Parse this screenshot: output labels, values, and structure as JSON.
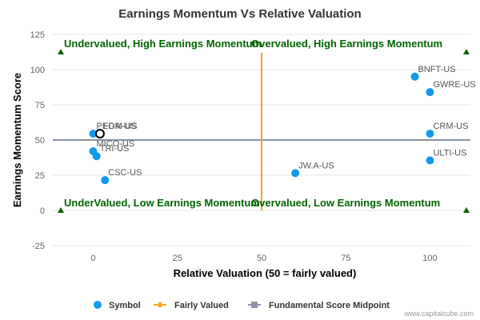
{
  "chart_data": {
    "type": "scatter",
    "title": "Earnings Momentum Vs Relative Valuation",
    "xlabel": "Relative Valuation (50 = fairly valued)",
    "ylabel": "Earnings Momentum Score",
    "xlim": [
      -12,
      112
    ],
    "ylim": [
      -25,
      125
    ],
    "x_ticks": [
      0,
      25,
      50,
      75,
      100
    ],
    "y_ticks": [
      -25,
      0,
      25,
      50,
      75,
      100,
      125
    ],
    "grid": "horizontal",
    "series": [
      {
        "name": "Symbol",
        "color": "#1199ee",
        "points": [
          {
            "label": "BNFT-US",
            "x": 95.5,
            "y": 95
          },
          {
            "label": "GWRE-US",
            "x": 100,
            "y": 84
          },
          {
            "label": "CRM-US",
            "x": 100,
            "y": 54.5
          },
          {
            "label": "ULTI-US",
            "x": 100,
            "y": 35.5
          },
          {
            "label": "JW.A-US",
            "x": 60,
            "y": 26.5
          },
          {
            "label": "PEGA-US",
            "x": 0,
            "y": 54.5
          },
          {
            "label": "MICO-US",
            "x": 0,
            "y": 42
          },
          {
            "label": "TRI-US",
            "x": 1,
            "y": 38.5
          },
          {
            "label": "CSC-US",
            "x": 3.5,
            "y": 21.5
          }
        ]
      }
    ],
    "highlight_point": {
      "label": "FDM-US",
      "x": 2,
      "y": 54.5
    },
    "fairly_valued": {
      "name": "Fairly Valued",
      "x": 50,
      "color": "#f5a623"
    },
    "midpoint": {
      "name": "Fundamental Score Midpoint",
      "y": 50,
      "color": "#8a94a6"
    },
    "quadrant_labels": [
      {
        "text": "Undervalued, High Earnings Momentum",
        "position": "top-left"
      },
      {
        "text": "Overvalued, High Earnings Momentum",
        "position": "top-right"
      },
      {
        "text": "UnderValued, Low Earnings Momentum",
        "position": "bottom-left"
      },
      {
        "text": "Overvalued, Low Earnings Momentum",
        "position": "bottom-right"
      }
    ],
    "legend": {
      "placement": "bottom",
      "items": [
        {
          "name": "Symbol",
          "marker": "circle",
          "color": "#1199ee"
        },
        {
          "name": "Fairly Valued",
          "marker": "line-diamond",
          "color": "#f5a623"
        },
        {
          "name": "Fundamental Score Midpoint",
          "marker": "line-square",
          "color": "#8a94a6"
        }
      ]
    },
    "credit": "www.capitalcube.com"
  }
}
